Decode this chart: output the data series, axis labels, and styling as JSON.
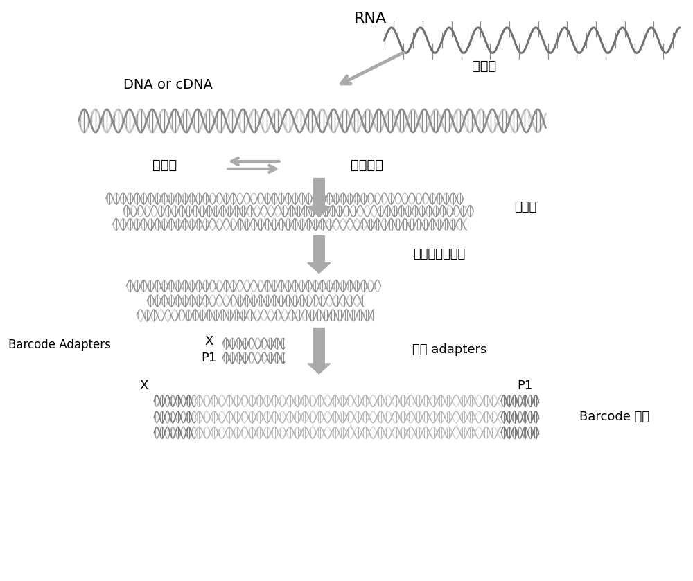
{
  "bg_color": "#ffffff",
  "dna_dark": "#909090",
  "dna_mid": "#aaaaaa",
  "dna_light": "#c8c8c8",
  "arrow_color": "#aaaaaa",
  "rna_label": "RNA",
  "reverse_label": "反转录",
  "dna_label": "DNA or cDNA",
  "primer_label": "引物对",
  "target_label": "靶标扩增",
  "amplicon_label": "扩增子",
  "digest_label": "部分消化扩增子",
  "barcode_adapters_label": "Barcode Adapters",
  "ligate_label": "连接 adapters",
  "barcode_library_label": "Barcode 文库",
  "x_label": "X",
  "p1_label": "P1",
  "figsize": [
    10.0,
    8.39
  ],
  "dpi": 100
}
